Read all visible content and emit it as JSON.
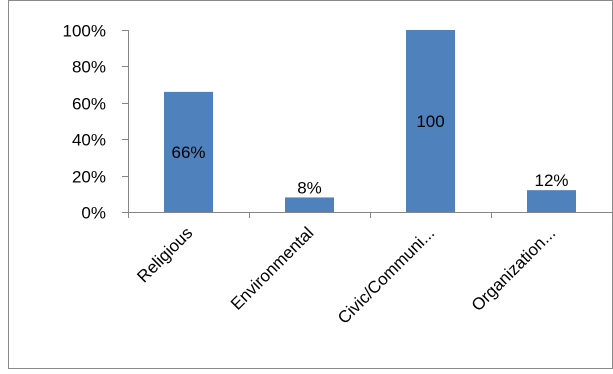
{
  "chart_data": {
    "type": "bar",
    "categories": [
      "Religious",
      "Environmental",
      "Civic/Communi...",
      "Organization..."
    ],
    "values": [
      66,
      8,
      100,
      12
    ],
    "data_labels": [
      "66%",
      "8%",
      "100",
      "12%"
    ],
    "ylim": [
      0,
      100
    ],
    "yticks": [
      0,
      20,
      40,
      60,
      80,
      100
    ],
    "ytick_labels": [
      "0%",
      "20%",
      "40%",
      "60%",
      "80%",
      "100%"
    ],
    "grid": false,
    "legend": "none",
    "bar_color": "#4f81bd",
    "axis_color": "#868686",
    "border_color": "#8a8a8a"
  }
}
